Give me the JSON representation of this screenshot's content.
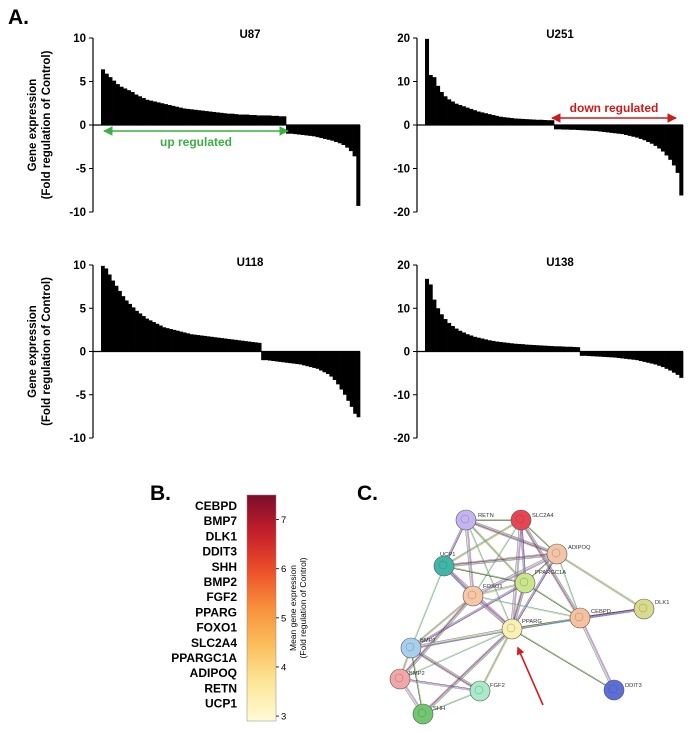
{
  "panel_labels": {
    "a": "A.",
    "b": "B.",
    "c": "C."
  },
  "chart_data": [
    {
      "type": "bar",
      "title": "U87",
      "ylabel": "Gene expression\n(Fold regulation of Control)",
      "ylabel_lines": [
        "Gene expression",
        "(Fold regulation of Control)"
      ],
      "ylim": [
        -10,
        10
      ],
      "yticks": [
        "10",
        "5",
        "0",
        "-5",
        "-10"
      ],
      "values": [
        6.4,
        5.9,
        5.5,
        5.1,
        4.7,
        4.4,
        4.2,
        4.0,
        3.8,
        3.5,
        3.3,
        3.1,
        2.9,
        2.8,
        2.7,
        2.6,
        2.5,
        2.4,
        2.3,
        2.2,
        2.1,
        2.0,
        1.9,
        1.85,
        1.8,
        1.75,
        1.7,
        1.65,
        1.6,
        1.55,
        1.5,
        1.45,
        1.4,
        1.35,
        1.3,
        1.3,
        1.25,
        1.2,
        1.2,
        1.2,
        1.15,
        1.15,
        1.1,
        1.1,
        1.1,
        1.1,
        1.05,
        1.05,
        1.0,
        1.0,
        -1.0,
        -1.0,
        -1.05,
        -1.1,
        -1.15,
        -1.2,
        -1.25,
        -1.3,
        -1.4,
        -1.5,
        -1.6,
        -1.7,
        -1.8,
        -1.95,
        -2.1,
        -2.3,
        -2.6,
        -3.0,
        -3.6,
        -9.3
      ],
      "annotation": {
        "text": "up regulated",
        "color": "#3cb043"
      }
    },
    {
      "type": "bar",
      "title": "U251",
      "ylim": [
        -20,
        20
      ],
      "yticks": [
        "20",
        "10",
        "0",
        "-10",
        "-20"
      ],
      "values": [
        19.8,
        11.5,
        11.0,
        9.0,
        7.6,
        6.6,
        5.9,
        5.4,
        4.9,
        4.6,
        4.3,
        4.0,
        3.7,
        3.4,
        3.1,
        2.9,
        2.7,
        2.5,
        2.3,
        2.1,
        1.9,
        1.8,
        1.7,
        1.6,
        1.5,
        1.45,
        1.4,
        1.35,
        1.3,
        1.25,
        1.2,
        1.2,
        1.15,
        1.1,
        1.1,
        -1.0,
        -1.0,
        -1.05,
        -1.05,
        -1.1,
        -1.1,
        -1.15,
        -1.2,
        -1.25,
        -1.3,
        -1.35,
        -1.4,
        -1.5,
        -1.6,
        -1.7,
        -1.8,
        -1.9,
        -2.0,
        -2.1,
        -2.3,
        -2.5,
        -2.7,
        -2.9,
        -3.2,
        -3.5,
        -3.9,
        -4.3,
        -4.8,
        -5.4,
        -6.1,
        -7.0,
        -8.0,
        -9.3,
        -11.0,
        -16.2
      ],
      "annotation": {
        "text": "down regulated",
        "color": "#cc1b1b"
      }
    },
    {
      "type": "bar",
      "title": "U118",
      "ylabel": "Gene expression\n(Fold regulation of Control)",
      "ylabel_lines": [
        "Gene expression",
        "(Fold regulation of Control)"
      ],
      "ylim": [
        -10,
        10
      ],
      "yticks": [
        "10",
        "5",
        "0",
        "-5",
        "-10"
      ],
      "values": [
        9.9,
        9.6,
        8.9,
        8.2,
        7.6,
        7.0,
        6.4,
        5.9,
        5.5,
        5.1,
        4.7,
        4.4,
        4.1,
        3.8,
        3.6,
        3.4,
        3.2,
        3.0,
        2.8,
        2.7,
        2.6,
        2.5,
        2.4,
        2.3,
        2.2,
        2.1,
        2.0,
        1.95,
        1.9,
        1.85,
        1.8,
        1.75,
        1.7,
        1.65,
        1.6,
        1.55,
        1.5,
        1.45,
        1.4,
        1.35,
        1.3,
        1.25,
        1.2,
        1.15,
        1.1,
        1.05,
        1.0,
        -1.0,
        -1.0,
        -1.05,
        -1.1,
        -1.15,
        -1.2,
        -1.25,
        -1.3,
        -1.35,
        -1.4,
        -1.45,
        -1.5,
        -1.6,
        -1.7,
        -1.8,
        -1.9,
        -2.0,
        -2.2,
        -2.4,
        -2.6,
        -2.9,
        -3.3,
        -3.8,
        -4.4,
        -5.0,
        -5.7,
        -6.4,
        -7.2,
        -7.6
      ],
      "annotation": null
    },
    {
      "type": "bar",
      "title": "U138",
      "ylim": [
        -20,
        20
      ],
      "yticks": [
        "20",
        "10",
        "0",
        "-10",
        "-20"
      ],
      "values": [
        16.8,
        15.5,
        12.0,
        10.0,
        8.6,
        7.5,
        6.6,
        5.9,
        5.3,
        4.8,
        4.4,
        4.0,
        3.7,
        3.4,
        3.2,
        3.0,
        2.8,
        2.6,
        2.45,
        2.3,
        2.2,
        2.1,
        2.0,
        1.9,
        1.8,
        1.75,
        1.7,
        1.6,
        1.55,
        1.5,
        1.45,
        1.4,
        1.35,
        1.3,
        1.25,
        1.2,
        1.2,
        1.15,
        1.1,
        1.1,
        1.05,
        1.0,
        -1.0,
        -1.0,
        -1.05,
        -1.1,
        -1.15,
        -1.2,
        -1.25,
        -1.3,
        -1.35,
        -1.4,
        -1.5,
        -1.6,
        -1.7,
        -1.8,
        -1.9,
        -2.0,
        -2.2,
        -2.4,
        -2.6,
        -2.8,
        -3.0,
        -3.3,
        -3.6,
        -4.0,
        -4.4,
        -4.9,
        -5.4,
        -6.1
      ],
      "annotation": null
    },
    {
      "type": "heatmap",
      "title": "",
      "genes": [
        "CEBPD",
        "BMP7",
        "DLK1",
        "DDIT3",
        "SHH",
        "BMP2",
        "FGF2",
        "PPARG",
        "FOXO1",
        "SLC2A4",
        "PPARGC1A",
        "ADIPOQ",
        "RETN",
        "UCP1"
      ],
      "colorbar": {
        "range": [
          2.9,
          7.5
        ],
        "ticks": [
          "7",
          "6",
          "5",
          "4",
          "3"
        ],
        "label_lines": [
          "Mean gene expression",
          "(Fold regulation of Control)"
        ],
        "colors": [
          "#7a0d2a",
          "#c51f2b",
          "#ec4f2a",
          "#f8903c",
          "#fbbf5d",
          "#fde69a",
          "#fffbd6"
        ]
      }
    }
  ],
  "network": {
    "nodes": [
      {
        "id": "RETN",
        "label": "RETN",
        "color": "#c4b5f2"
      },
      {
        "id": "SLC2A4",
        "label": "SLC2A4",
        "color": "#e64551"
      },
      {
        "id": "ADIPOQ",
        "label": "ADIPOQ",
        "color": "#f4c4a6"
      },
      {
        "id": "UCP1",
        "label": "UCP1",
        "color": "#3fb6a8"
      },
      {
        "id": "PPARGC1A",
        "label": "PPARGC1A",
        "color": "#c9e688"
      },
      {
        "id": "FOXO1",
        "label": "FOXO1",
        "color": "#f6c8a6"
      },
      {
        "id": "PPARG",
        "label": "PPARG",
        "color": "#f9f0b2"
      },
      {
        "id": "CEBPD",
        "label": "CEBPD",
        "color": "#f6c19c"
      },
      {
        "id": "DLK1",
        "label": "DLK1",
        "color": "#d9db8c"
      },
      {
        "id": "BMP7",
        "label": "BMP7",
        "color": "#a7d0ee"
      },
      {
        "id": "BMP2",
        "label": "BMP2",
        "color": "#f2a6a6"
      },
      {
        "id": "FGF2",
        "label": "FGF2",
        "color": "#a9eac9"
      },
      {
        "id": "SHH",
        "label": "SHH",
        "color": "#6fc76f"
      },
      {
        "id": "DDIT3",
        "label": "DDIT3",
        "color": "#5b6fd6"
      }
    ],
    "edges": [
      [
        "RETN",
        "SLC2A4"
      ],
      [
        "RETN",
        "UCP1"
      ],
      [
        "RETN",
        "FOXO1"
      ],
      [
        "RETN",
        "PPARG"
      ],
      [
        "RETN",
        "PPARGC1A"
      ],
      [
        "RETN",
        "ADIPOQ"
      ],
      [
        "SLC2A4",
        "ADIPOQ"
      ],
      [
        "SLC2A4",
        "PPARGC1A"
      ],
      [
        "SLC2A4",
        "PPARG"
      ],
      [
        "SLC2A4",
        "FOXO1"
      ],
      [
        "SLC2A4",
        "UCP1"
      ],
      [
        "SLC2A4",
        "CEBPD"
      ],
      [
        "ADIPOQ",
        "PPARGC1A"
      ],
      [
        "ADIPOQ",
        "PPARG"
      ],
      [
        "ADIPOQ",
        "FOXO1"
      ],
      [
        "ADIPOQ",
        "CEBPD"
      ],
      [
        "ADIPOQ",
        "DLK1"
      ],
      [
        "ADIPOQ",
        "UCP1"
      ],
      [
        "UCP1",
        "PPARGC1A"
      ],
      [
        "UCP1",
        "FOXO1"
      ],
      [
        "UCP1",
        "PPARG"
      ],
      [
        "UCP1",
        "BMP7"
      ],
      [
        "PPARGC1A",
        "FOXO1"
      ],
      [
        "PPARGC1A",
        "PPARG"
      ],
      [
        "PPARGC1A",
        "CEBPD"
      ],
      [
        "PPARGC1A",
        "BMP7"
      ],
      [
        "FOXO1",
        "PPARG"
      ],
      [
        "FOXO1",
        "CEBPD"
      ],
      [
        "FOXO1",
        "BMP7"
      ],
      [
        "FOXO1",
        "BMP2"
      ],
      [
        "PPARG",
        "CEBPD"
      ],
      [
        "PPARG",
        "DLK1"
      ],
      [
        "PPARG",
        "BMP7"
      ],
      [
        "PPARG",
        "BMP2"
      ],
      [
        "PPARG",
        "FGF2"
      ],
      [
        "PPARG",
        "SHH"
      ],
      [
        "PPARG",
        "DDIT3"
      ],
      [
        "CEBPD",
        "DLK1"
      ],
      [
        "CEBPD",
        "DDIT3"
      ],
      [
        "CEBPD",
        "BMP7"
      ],
      [
        "BMP7",
        "BMP2"
      ],
      [
        "BMP7",
        "FGF2"
      ],
      [
        "BMP7",
        "SHH"
      ],
      [
        "BMP2",
        "FGF2"
      ],
      [
        "BMP2",
        "SHH"
      ],
      [
        "FGF2",
        "SHH"
      ]
    ]
  },
  "colors": {
    "bar": "#000000",
    "up_arrow": "#3cb043",
    "down_arrow": "#cc1b1b",
    "pointer_arrow": "#d61f1f"
  }
}
